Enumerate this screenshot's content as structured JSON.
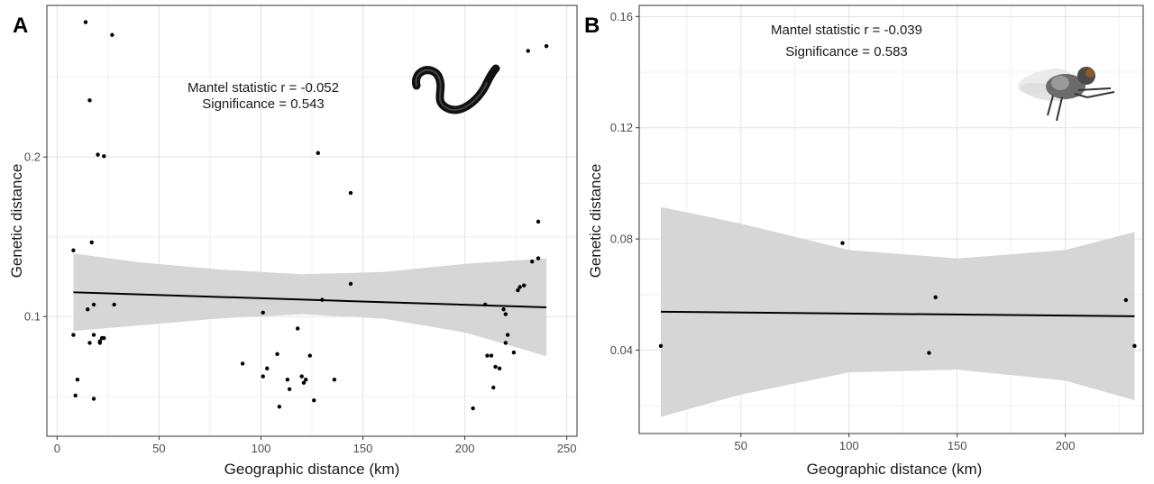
{
  "chart_data": [
    {
      "type": "scatter",
      "panel_label": "A",
      "xlabel": "Geographic distance (km)",
      "ylabel": "Genetic distance",
      "xlim": [
        -5,
        255
      ],
      "ylim": [
        0.025,
        0.295
      ],
      "xticks": [
        0,
        50,
        100,
        150,
        200,
        250
      ],
      "xtick_labels": [
        "0",
        "50",
        "100",
        "150",
        "200",
        "250"
      ],
      "yticks": [
        0.1,
        0.2
      ],
      "ytick_labels": [
        "0.1",
        "0.2"
      ],
      "grid": true,
      "annotation": [
        "Mantel statistic r = -0.052",
        "Significance = 0.543"
      ],
      "icon": "worm-icon",
      "trend": {
        "x": [
          8,
          240
        ],
        "y": [
          0.1152,
          0.1058
        ]
      },
      "confidence_band": {
        "x": [
          8,
          40,
          80,
          120,
          160,
          200,
          240
        ],
        "upper": [
          0.1395,
          0.134,
          0.1295,
          0.1265,
          0.128,
          0.133,
          0.1365
        ],
        "lower": [
          0.0909,
          0.0944,
          0.0988,
          0.1015,
          0.0987,
          0.09,
          0.0752
        ]
      },
      "points": {
        "x": [
          14,
          27,
          16,
          20,
          23,
          17,
          8,
          18,
          28,
          15,
          22,
          18,
          16,
          8,
          21,
          23,
          21,
          10,
          9,
          18,
          101,
          128,
          144,
          130,
          144,
          91,
          103,
          101,
          108,
          118,
          113,
          120,
          122,
          121,
          124,
          136,
          109,
          126,
          114,
          204,
          210,
          211,
          213,
          215,
          214,
          217,
          219,
          220,
          220,
          221,
          224,
          226,
          227,
          229,
          233,
          236,
          236,
          240,
          231
        ],
        "y": [
          0.2845,
          0.2765,
          0.2355,
          0.2015,
          0.2005,
          0.1465,
          0.1415,
          0.1075,
          0.1075,
          0.1045,
          0.0865,
          0.0885,
          0.0835,
          0.0885,
          0.0845,
          0.0865,
          0.0835,
          0.0605,
          0.0505,
          0.0485,
          0.1025,
          0.2025,
          0.1775,
          0.1105,
          0.1205,
          0.0705,
          0.0675,
          0.0625,
          0.0765,
          0.0925,
          0.0605,
          0.0625,
          0.0605,
          0.0585,
          0.0755,
          0.0605,
          0.0435,
          0.0475,
          0.0545,
          0.0425,
          0.1075,
          0.0755,
          0.0755,
          0.0685,
          0.0555,
          0.0675,
          0.1045,
          0.1015,
          0.0835,
          0.0885,
          0.0775,
          0.1165,
          0.1185,
          0.1195,
          0.1345,
          0.1595,
          0.1365,
          0.2695,
          0.2665
        ]
      }
    },
    {
      "type": "scatter",
      "panel_label": "B",
      "xlabel": "Geographic distance (km)",
      "ylabel": "Genetic distance",
      "xlim": [
        3,
        236
      ],
      "ylim": [
        0.01,
        0.164
      ],
      "xticks": [
        50,
        100,
        150,
        200
      ],
      "xtick_labels": [
        "50",
        "100",
        "150",
        "200"
      ],
      "yticks": [
        0.04,
        0.08,
        0.12,
        0.16
      ],
      "ytick_labels": [
        "0.04",
        "0.08",
        "0.12",
        "0.16"
      ],
      "grid": true,
      "annotation": [
        "Mantel statistic r = -0.039",
        "Significance = 0.583"
      ],
      "icon": "fly-icon",
      "trend": {
        "x": [
          13,
          232
        ],
        "y": [
          0.0538,
          0.0522
        ]
      },
      "confidence_band": {
        "x": [
          13,
          50,
          100,
          150,
          200,
          232
        ],
        "upper": [
          0.0915,
          0.0855,
          0.076,
          0.073,
          0.076,
          0.0825
        ],
        "lower": [
          0.016,
          0.024,
          0.032,
          0.033,
          0.029,
          0.022
        ]
      },
      "points": {
        "x": [
          13,
          97,
          137,
          140,
          228,
          232
        ],
        "y": [
          0.0415,
          0.0785,
          0.039,
          0.059,
          0.058,
          0.0415
        ]
      }
    }
  ]
}
